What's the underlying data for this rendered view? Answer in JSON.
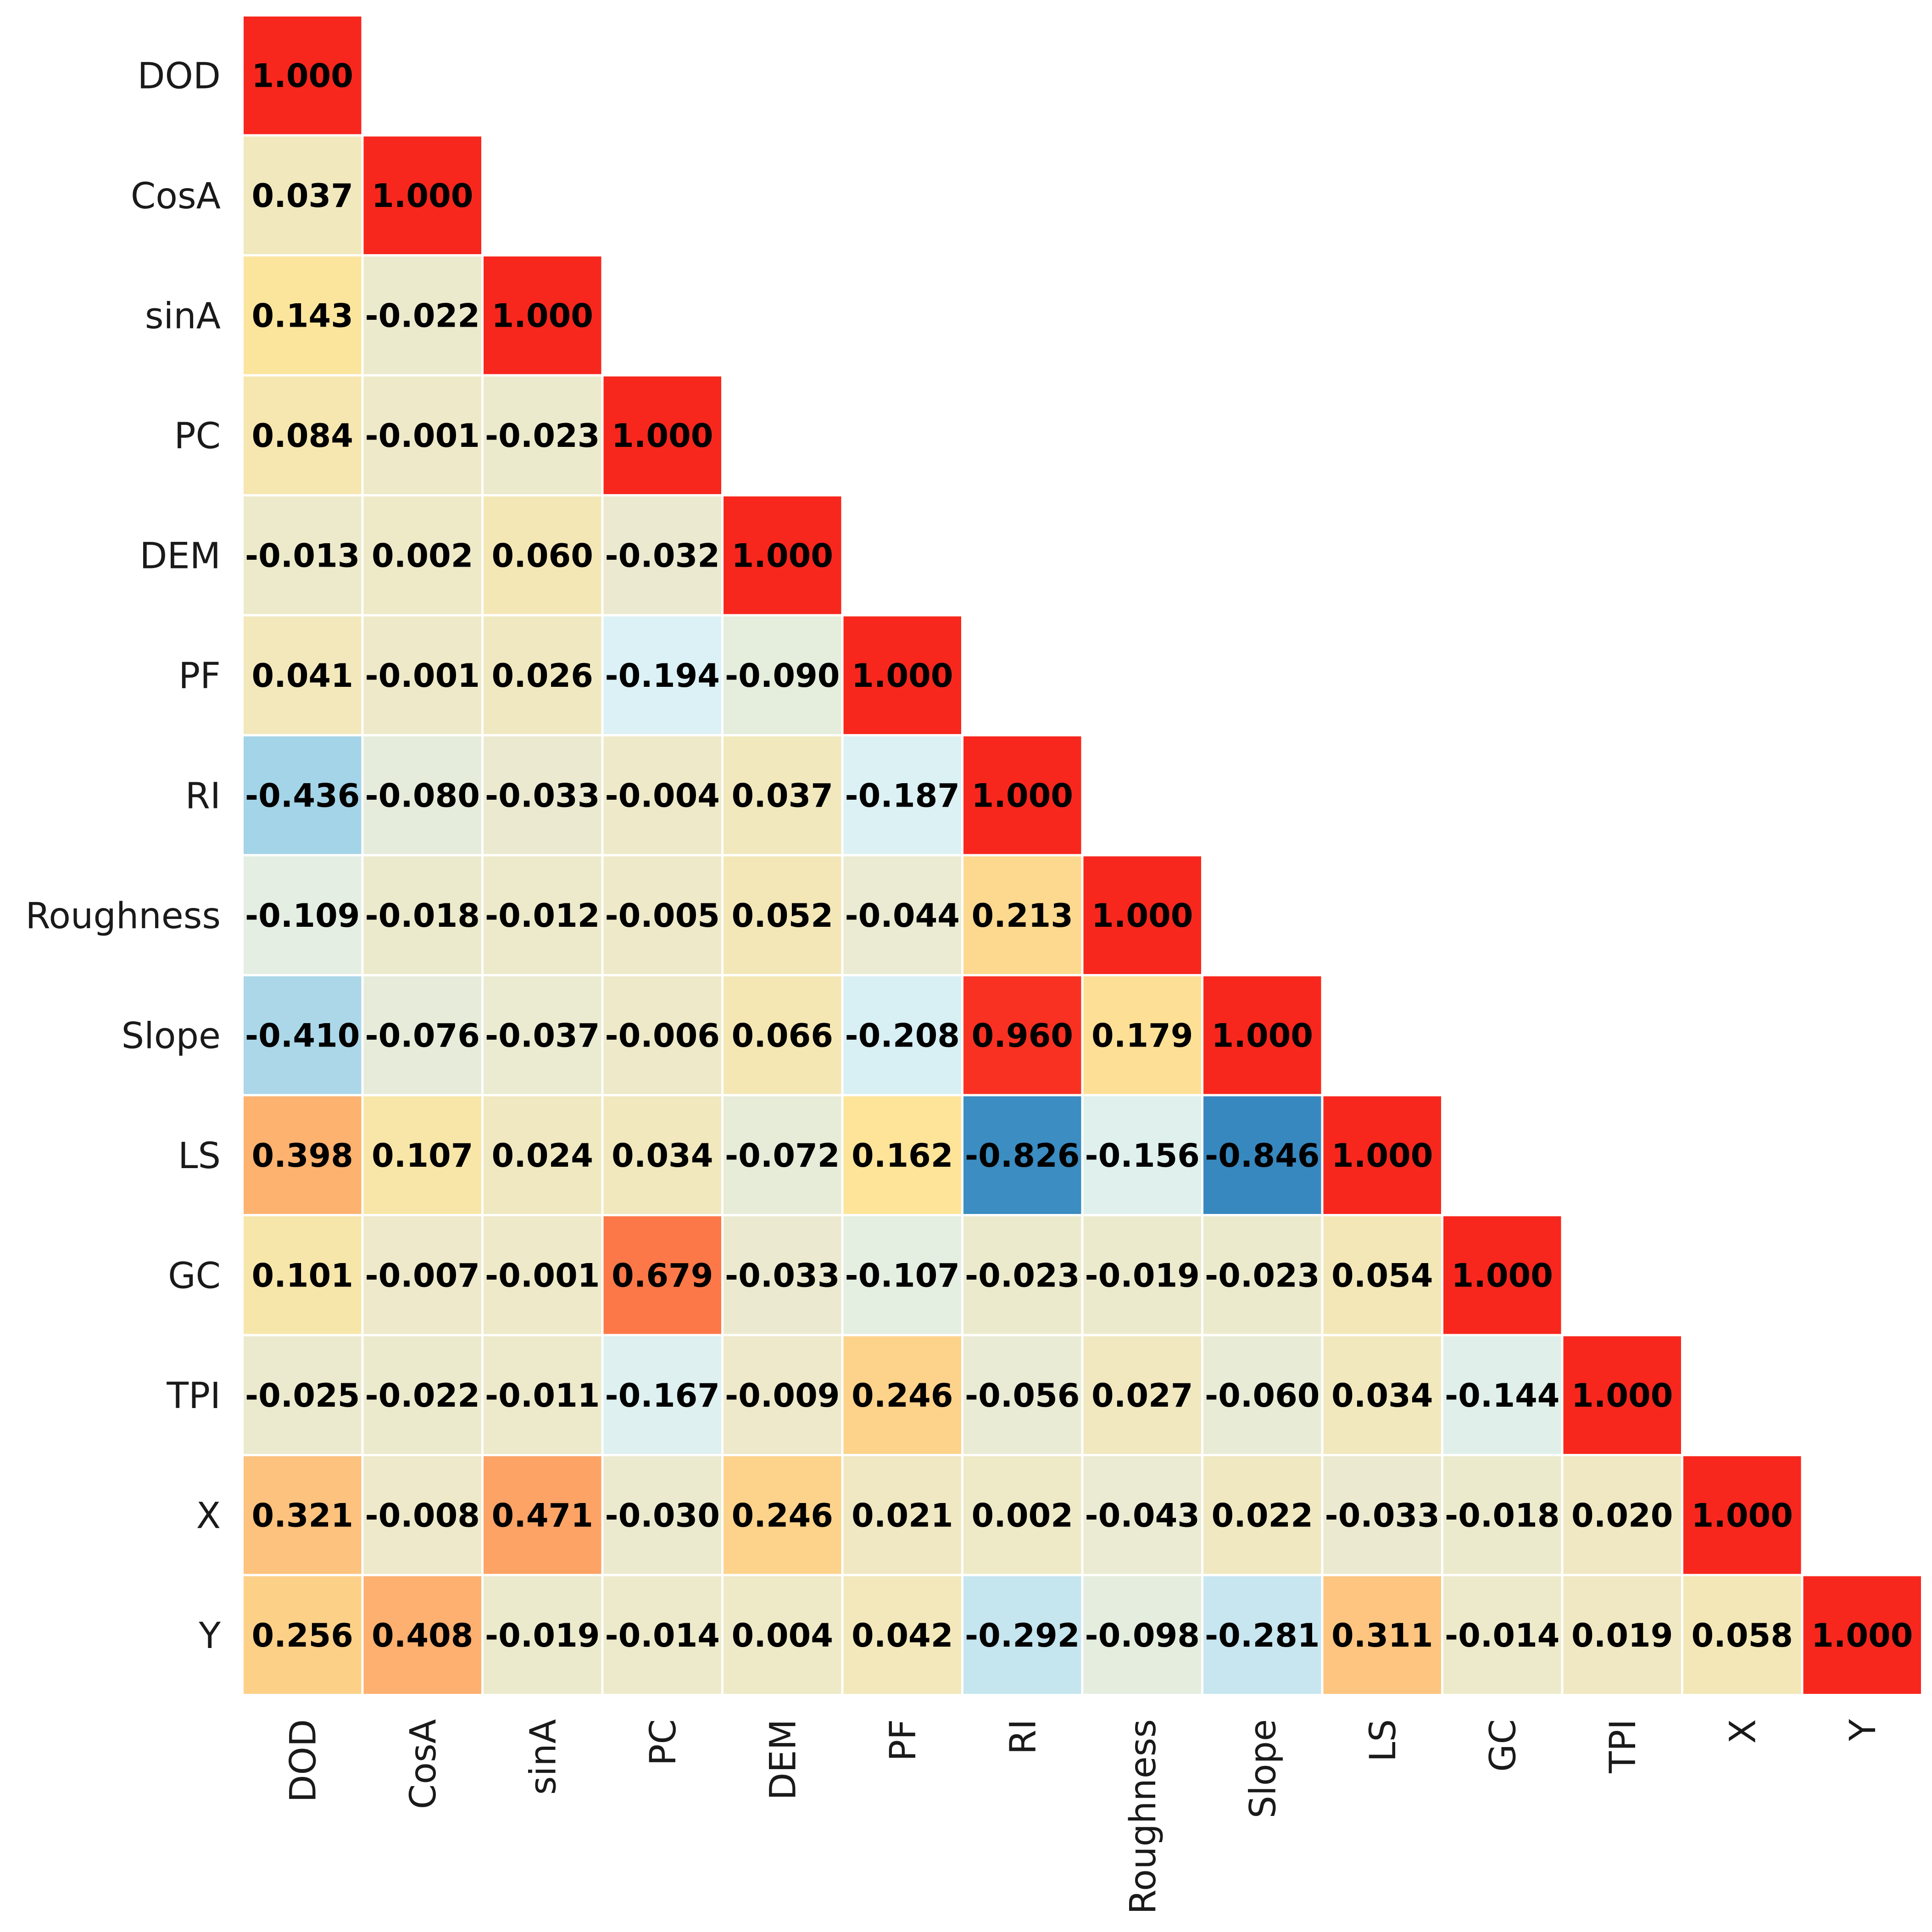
{
  "chart_data": {
    "type": "heatmap",
    "title": "",
    "xlabel": "",
    "ylabel": "",
    "variables": [
      "DOD",
      "CosA",
      "sinA",
      "PC",
      "DEM",
      "PF",
      "RI",
      "Roughness",
      "Slope",
      "LS",
      "GC",
      "TPI",
      "X",
      "Y"
    ],
    "triangle": "lower",
    "value_range": [
      -1,
      1
    ],
    "grid": false,
    "matrix": [
      [
        "1.000"
      ],
      [
        "0.037",
        "1.000"
      ],
      [
        "0.143",
        "-0.022",
        "1.000"
      ],
      [
        "0.084",
        "-0.001",
        "-0.023",
        "1.000"
      ],
      [
        "-0.013",
        "0.002",
        "0.060",
        "-0.032",
        "1.000"
      ],
      [
        "0.041",
        "-0.001",
        "0.026",
        "-0.194",
        "-0.090",
        "1.000"
      ],
      [
        "-0.436",
        "-0.080",
        "-0.033",
        "-0.004",
        "0.037",
        "-0.187",
        "1.000"
      ],
      [
        "-0.109",
        "-0.018",
        "-0.012",
        "-0.005",
        "0.052",
        "-0.044",
        "0.213",
        "1.000"
      ],
      [
        "-0.410",
        "-0.076",
        "-0.037",
        "-0.006",
        "0.066",
        "-0.208",
        "0.960",
        "0.179",
        "1.000"
      ],
      [
        "0.398",
        "0.107",
        "0.024",
        "0.034",
        "-0.072",
        "0.162",
        "-0.826",
        "-0.156",
        "-0.846",
        "1.000"
      ],
      [
        "0.101",
        "-0.007",
        "-0.001",
        "0.679",
        "-0.033",
        "-0.107",
        "-0.023",
        "-0.019",
        "-0.023",
        "0.054",
        "1.000"
      ],
      [
        "-0.025",
        "-0.022",
        "-0.011",
        "-0.167",
        "-0.009",
        "0.246",
        "-0.056",
        "0.027",
        "-0.060",
        "0.034",
        "-0.144",
        "1.000"
      ],
      [
        "0.321",
        "-0.008",
        "0.471",
        "-0.030",
        "0.246",
        "0.021",
        "0.002",
        "-0.043",
        "0.022",
        "-0.033",
        "-0.018",
        "0.020",
        "1.000"
      ],
      [
        "0.256",
        "0.408",
        "-0.019",
        "-0.014",
        "0.004",
        "0.042",
        "-0.292",
        "-0.098",
        "-0.281",
        "0.311",
        "-0.014",
        "0.019",
        "0.058",
        "1.000"
      ]
    ],
    "colormap": {
      "low": "#3a8cc2",
      "mid": "#eee9c8",
      "high": "#f8271d"
    }
  }
}
